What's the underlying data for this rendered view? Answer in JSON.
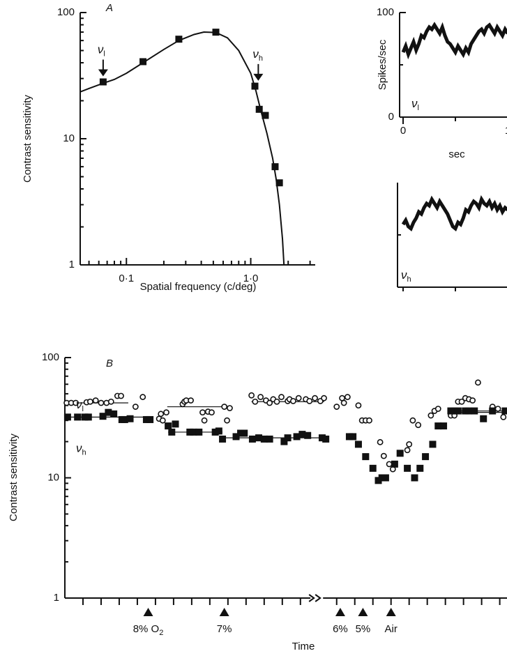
{
  "chart_data": [
    {
      "type": "scatter",
      "title": "A",
      "xlabel": "Spatial frequency  (c/deg)",
      "ylabel": "Contrast sensitivity",
      "log_x": true,
      "log_y": true,
      "xlim": [
        0.0425,
        3.3
      ],
      "ylim": [
        1,
        100
      ],
      "xticks": [
        {
          "value": 0.1,
          "label": "0·1"
        },
        {
          "value": 1,
          "label": "1·0"
        }
      ],
      "xminorticks": [
        0.05,
        0.06,
        0.07,
        0.08,
        0.09,
        0.2,
        0.3,
        0.4,
        0.5,
        0.6,
        0.7,
        0.8,
        0.9,
        2,
        3
      ],
      "yticks": [
        1,
        10,
        100
      ],
      "yminorticks": [
        2,
        3,
        4,
        5,
        6,
        7,
        8,
        9,
        20,
        30,
        40,
        50,
        60,
        70,
        80,
        90
      ],
      "series": [
        {
          "marker": "square",
          "color": "#111",
          "x": [
            0.065,
            0.136,
            0.264,
            0.524,
            1.08,
            1.17,
            1.31,
            1.57,
            1.7
          ],
          "values": [
            28.2,
            40.8,
            61.5,
            69.9,
            26.1,
            17.1,
            15.3,
            6.0,
            4.47
          ]
        }
      ],
      "fit": {
        "color": "#111",
        "x": [
          0.0425,
          0.05,
          0.065,
          0.08,
          0.1,
          0.136,
          0.2,
          0.264,
          0.35,
          0.42,
          0.524,
          0.65,
          0.8,
          1.0,
          1.1,
          1.2,
          1.35,
          1.5,
          1.6,
          1.7,
          1.8,
          1.85
        ],
        "values": [
          23.5,
          25,
          27.5,
          29.5,
          33,
          40,
          51,
          60,
          67,
          70,
          69.5,
          63,
          50,
          33,
          24,
          17,
          11,
          7,
          4.8,
          3,
          1.6,
          1
        ]
      },
      "annotations": [
        {
          "text": "ν",
          "sub": "l",
          "x": 0.065,
          "y": 28.2
        },
        {
          "text": "ν",
          "sub": "h",
          "x": 1.15,
          "y": 26
        }
      ]
    },
    {
      "type": "line",
      "ylabel": "Spikes/sec",
      "xlabel": "sec",
      "xlim": [
        0,
        1
      ],
      "ylim": [
        0,
        100
      ],
      "xticks": [
        0,
        1
      ],
      "xminorticks": [
        0.5
      ],
      "yticks": [
        0,
        100
      ],
      "yminorticks": [
        50
      ],
      "series": [
        {
          "color": "#111",
          "x": [
            0,
            0.025,
            0.05,
            0.075,
            0.1,
            0.125,
            0.15,
            0.175,
            0.2,
            0.225,
            0.25,
            0.275,
            0.3,
            0.325,
            0.35,
            0.375,
            0.4,
            0.425,
            0.45,
            0.475,
            0.5,
            0.525,
            0.55,
            0.575,
            0.6,
            0.625,
            0.65,
            0.675,
            0.7,
            0.725,
            0.75,
            0.775,
            0.8,
            0.825,
            0.85,
            0.875,
            0.9,
            0.925,
            0.95,
            0.975,
            1
          ],
          "values": [
            62,
            68,
            60,
            66,
            72,
            64,
            70,
            78,
            76,
            82,
            86,
            84,
            88,
            84,
            80,
            86,
            78,
            72,
            70,
            66,
            62,
            68,
            64,
            60,
            66,
            62,
            70,
            74,
            78,
            82,
            84,
            80,
            86,
            88,
            84,
            80,
            86,
            82,
            78,
            84,
            80
          ]
        }
      ],
      "annotations": [
        {
          "text": "ν",
          "sub": "l"
        }
      ]
    },
    {
      "type": "line",
      "xlim": [
        0,
        1
      ],
      "ylim": [
        0,
        100
      ],
      "xminorticks": [
        0,
        0.5
      ],
      "yminorticks": [
        50
      ],
      "series": [
        {
          "color": "#111",
          "x": [
            0,
            0.025,
            0.05,
            0.075,
            0.1,
            0.125,
            0.15,
            0.175,
            0.2,
            0.225,
            0.25,
            0.275,
            0.3,
            0.325,
            0.35,
            0.375,
            0.4,
            0.425,
            0.45,
            0.475,
            0.5,
            0.525,
            0.55,
            0.575,
            0.6,
            0.625,
            0.65,
            0.675,
            0.7,
            0.725,
            0.75,
            0.775,
            0.8,
            0.825,
            0.85,
            0.875,
            0.9,
            0.925,
            0.95,
            0.975,
            1
          ],
          "values": [
            60,
            64,
            58,
            56,
            62,
            66,
            72,
            70,
            76,
            80,
            78,
            84,
            80,
            76,
            82,
            78,
            74,
            70,
            64,
            58,
            56,
            62,
            60,
            66,
            74,
            72,
            78,
            82,
            80,
            76,
            84,
            80,
            78,
            82,
            76,
            80,
            74,
            78,
            72,
            76,
            74
          ]
        }
      ],
      "annotations": [
        {
          "text": "ν",
          "sub": "h"
        }
      ]
    },
    {
      "type": "scatter",
      "title": "B",
      "xlabel": "Time",
      "ylabel": "Contrast sensitivity",
      "log_y": true,
      "xlim": [
        0,
        24.4
      ],
      "ylim": [
        1,
        100
      ],
      "xbreak": 13.9,
      "xminorticks": [
        1,
        2,
        3,
        4,
        5,
        6,
        7,
        8,
        9,
        10,
        11,
        12,
        13,
        15,
        16,
        17,
        18,
        19,
        20,
        21,
        22,
        23,
        24
      ],
      "yticks": [
        1,
        10,
        100
      ],
      "yminorticks": [
        2,
        3,
        4,
        5,
        6,
        7,
        8,
        9,
        20,
        30,
        40,
        50,
        60,
        70,
        80,
        90
      ],
      "series": [
        {
          "label": "ν",
          "sub": "l",
          "marker": "circle",
          "color": "#111",
          "x": [
            0.1,
            0.35,
            0.6,
            1.2,
            1.4,
            1.7,
            2.0,
            2.3,
            2.55,
            2.9,
            3.1,
            3.9,
            4.3,
            5.2,
            5.3,
            5.4,
            5.6,
            6.5,
            6.6,
            6.7,
            6.95,
            7.6,
            7.7,
            7.9,
            8.1,
            8.8,
            8.95,
            9.1,
            10.3,
            10.5,
            10.8,
            11.1,
            11.3,
            11.5,
            11.7,
            11.95,
            12.3,
            12.4,
            12.6,
            12.9,
            13.3,
            13.5,
            13.8,
            14.1,
            14.3,
            15.0,
            15.3,
            15.4,
            15.6,
            16.2,
            16.4,
            16.6,
            16.8,
            17.4,
            17.6,
            17.9,
            18.1,
            18.9,
            19.0,
            19.2,
            19.5,
            20.2,
            20.4,
            20.6,
            21.3,
            21.5,
            21.7,
            21.9,
            22.1,
            22.3,
            22.5,
            22.8,
            23.6,
            23.9,
            24.2
          ],
          "values": [
            42,
            42,
            42,
            42.5,
            43,
            44,
            42,
            42,
            43,
            48,
            48,
            39,
            47,
            31,
            34,
            30,
            35,
            41,
            43,
            44,
            44,
            35,
            30,
            35.5,
            35,
            39,
            30,
            38,
            48.5,
            43,
            47,
            44,
            42,
            45,
            43,
            47,
            43.5,
            45,
            43.5,
            46,
            45,
            43.5,
            46,
            43.5,
            46,
            39,
            46,
            42,
            47,
            40,
            30,
            30,
            30,
            19.8,
            15.2,
            13,
            11.8,
            17,
            19,
            30,
            27.5,
            33,
            36,
            37.5,
            33,
            33,
            43,
            43,
            46,
            45,
            44,
            62,
            39,
            37.5,
            32
          ],
          "levels": [
            {
              "x0": 0.1,
              "x1": 3.5,
              "value": 42
            },
            {
              "x0": 5.65,
              "x1": 8.7,
              "value": 39
            },
            {
              "x0": 10.3,
              "x1": 14.3,
              "value": 43
            },
            {
              "x0": 21.3,
              "x1": 24.4,
              "value": 35
            }
          ]
        },
        {
          "label": "ν",
          "sub": "h",
          "marker": "square",
          "color": "#111",
          "x": [
            0.15,
            0.7,
            1.1,
            1.3,
            2.1,
            2.4,
            2.7,
            3.15,
            3.3,
            3.6,
            4.5,
            4.7,
            5.7,
            5.9,
            6.1,
            6.9,
            7.1,
            7.4,
            8.3,
            8.5,
            8.7,
            9.45,
            9.7,
            9.9,
            10.35,
            10.7,
            11.0,
            11.3,
            12.1,
            12.3,
            12.8,
            13.1,
            13.4,
            14.2,
            14.4,
            15.7,
            15.9,
            16.2,
            16.6,
            17.0,
            17.3,
            17.5,
            17.7,
            18.2,
            18.5,
            18.9,
            19.3,
            19.6,
            19.9,
            20.3,
            20.6,
            20.9,
            21.3,
            21.5,
            21.7,
            22.1,
            22.3,
            22.6,
            23.1,
            23.6,
            24.3
          ],
          "values": [
            32,
            32,
            32,
            32,
            32.5,
            35,
            34,
            30.5,
            30.5,
            31,
            30.5,
            30.5,
            27,
            24,
            28,
            24,
            24,
            24,
            24,
            24.5,
            21,
            22,
            23.5,
            23.5,
            21,
            21.5,
            21,
            21,
            20,
            21.5,
            22,
            23,
            22.5,
            21.5,
            21,
            22,
            22,
            19,
            15,
            12,
            9.5,
            10,
            10,
            13,
            16,
            12,
            10,
            12,
            15,
            19,
            27,
            27,
            36,
            36,
            36,
            36,
            36,
            36,
            31,
            36,
            36
          ],
          "levels": [
            {
              "x0": 0,
              "x1": 4.5,
              "value": 32
            },
            {
              "x0": 5.7,
              "x1": 8.7,
              "value": 24
            },
            {
              "x0": 8.8,
              "x1": 14.5,
              "value": 21.5
            },
            {
              "x0": 21.3,
              "x1": 24.4,
              "value": 36
            }
          ]
        }
      ],
      "events": [
        {
          "x": 4.6,
          "text": "8% O",
          "sub": "2"
        },
        {
          "x": 8.8,
          "text": "7%"
        },
        {
          "x": 15.2,
          "text": "6%"
        },
        {
          "x": 16.45,
          "text": "5%"
        },
        {
          "x": 18.0,
          "text": "Air"
        }
      ]
    }
  ]
}
